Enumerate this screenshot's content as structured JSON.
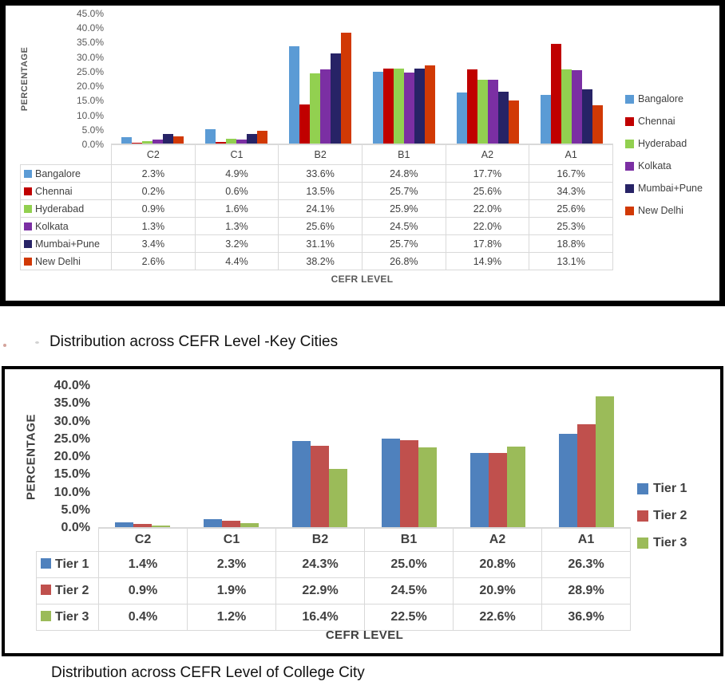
{
  "captions": {
    "chart1": "Distribution across CEFR Level -Key Cities",
    "chart2": "Distribution across CEFR Level of College City"
  },
  "chart_data": [
    {
      "type": "bar",
      "title": "Distribution across CEFR Level -Key Cities",
      "xlabel": "CEFR LEVEL",
      "ylabel": "PERCENTAGE",
      "categories": [
        "C2",
        "C1",
        "B2",
        "B1",
        "A2",
        "A1"
      ],
      "series": [
        {
          "name": "Bangalore",
          "color": "#5B9BD5",
          "values": [
            2.3,
            4.9,
            33.6,
            24.8,
            17.7,
            16.7
          ]
        },
        {
          "name": "Chennai",
          "color": "#C00000",
          "values": [
            0.2,
            0.6,
            13.5,
            25.7,
            25.6,
            34.3
          ]
        },
        {
          "name": "Hyderabad",
          "color": "#92D050",
          "values": [
            0.9,
            1.6,
            24.1,
            25.9,
            22.0,
            25.6
          ]
        },
        {
          "name": "Kolkata",
          "color": "#7B2FA3",
          "values": [
            1.3,
            1.3,
            25.6,
            24.5,
            22.0,
            25.3
          ]
        },
        {
          "name": "Mumbai+Pune",
          "color": "#272366",
          "values": [
            3.4,
            3.2,
            31.1,
            25.7,
            17.8,
            18.8
          ]
        },
        {
          "name": "New Delhi",
          "color": "#D13905",
          "values": [
            2.6,
            4.4,
            38.2,
            26.8,
            14.9,
            13.1
          ]
        }
      ],
      "ylim": [
        0,
        45
      ],
      "tick_step": 5,
      "tick_labels": [
        "45.0%",
        "40.0%",
        "35.0%",
        "30.0%",
        "25.0%",
        "20.0%",
        "15.0%",
        "10.0%",
        "5.0%",
        "0.0%"
      ],
      "grid": false,
      "legend_position": "right",
      "value_suffix": "%"
    },
    {
      "type": "bar",
      "title": "Distribution across CEFR Level of College City",
      "xlabel": "CEFR LEVEL",
      "ylabel": "PERCENTAGE",
      "categories": [
        "C2",
        "C1",
        "B2",
        "B1",
        "A2",
        "A1"
      ],
      "series": [
        {
          "name": "Tier 1",
          "color": "#4F81BD",
          "values": [
            1.4,
            2.3,
            24.3,
            25.0,
            20.8,
            26.3
          ]
        },
        {
          "name": "Tier 2",
          "color": "#C0504D",
          "values": [
            0.9,
            1.9,
            22.9,
            24.5,
            20.9,
            28.9
          ]
        },
        {
          "name": "Tier 3",
          "color": "#9BBB59",
          "values": [
            0.4,
            1.2,
            16.4,
            22.5,
            22.6,
            36.9
          ]
        }
      ],
      "ylim": [
        0,
        40
      ],
      "tick_step": 5,
      "tick_labels": [
        "40.0%",
        "35.0%",
        "30.0%",
        "25.0%",
        "20.0%",
        "15.0%",
        "10.0%",
        "5.0%",
        "0.0%"
      ],
      "grid": false,
      "legend_position": "right",
      "value_suffix": "%"
    }
  ]
}
